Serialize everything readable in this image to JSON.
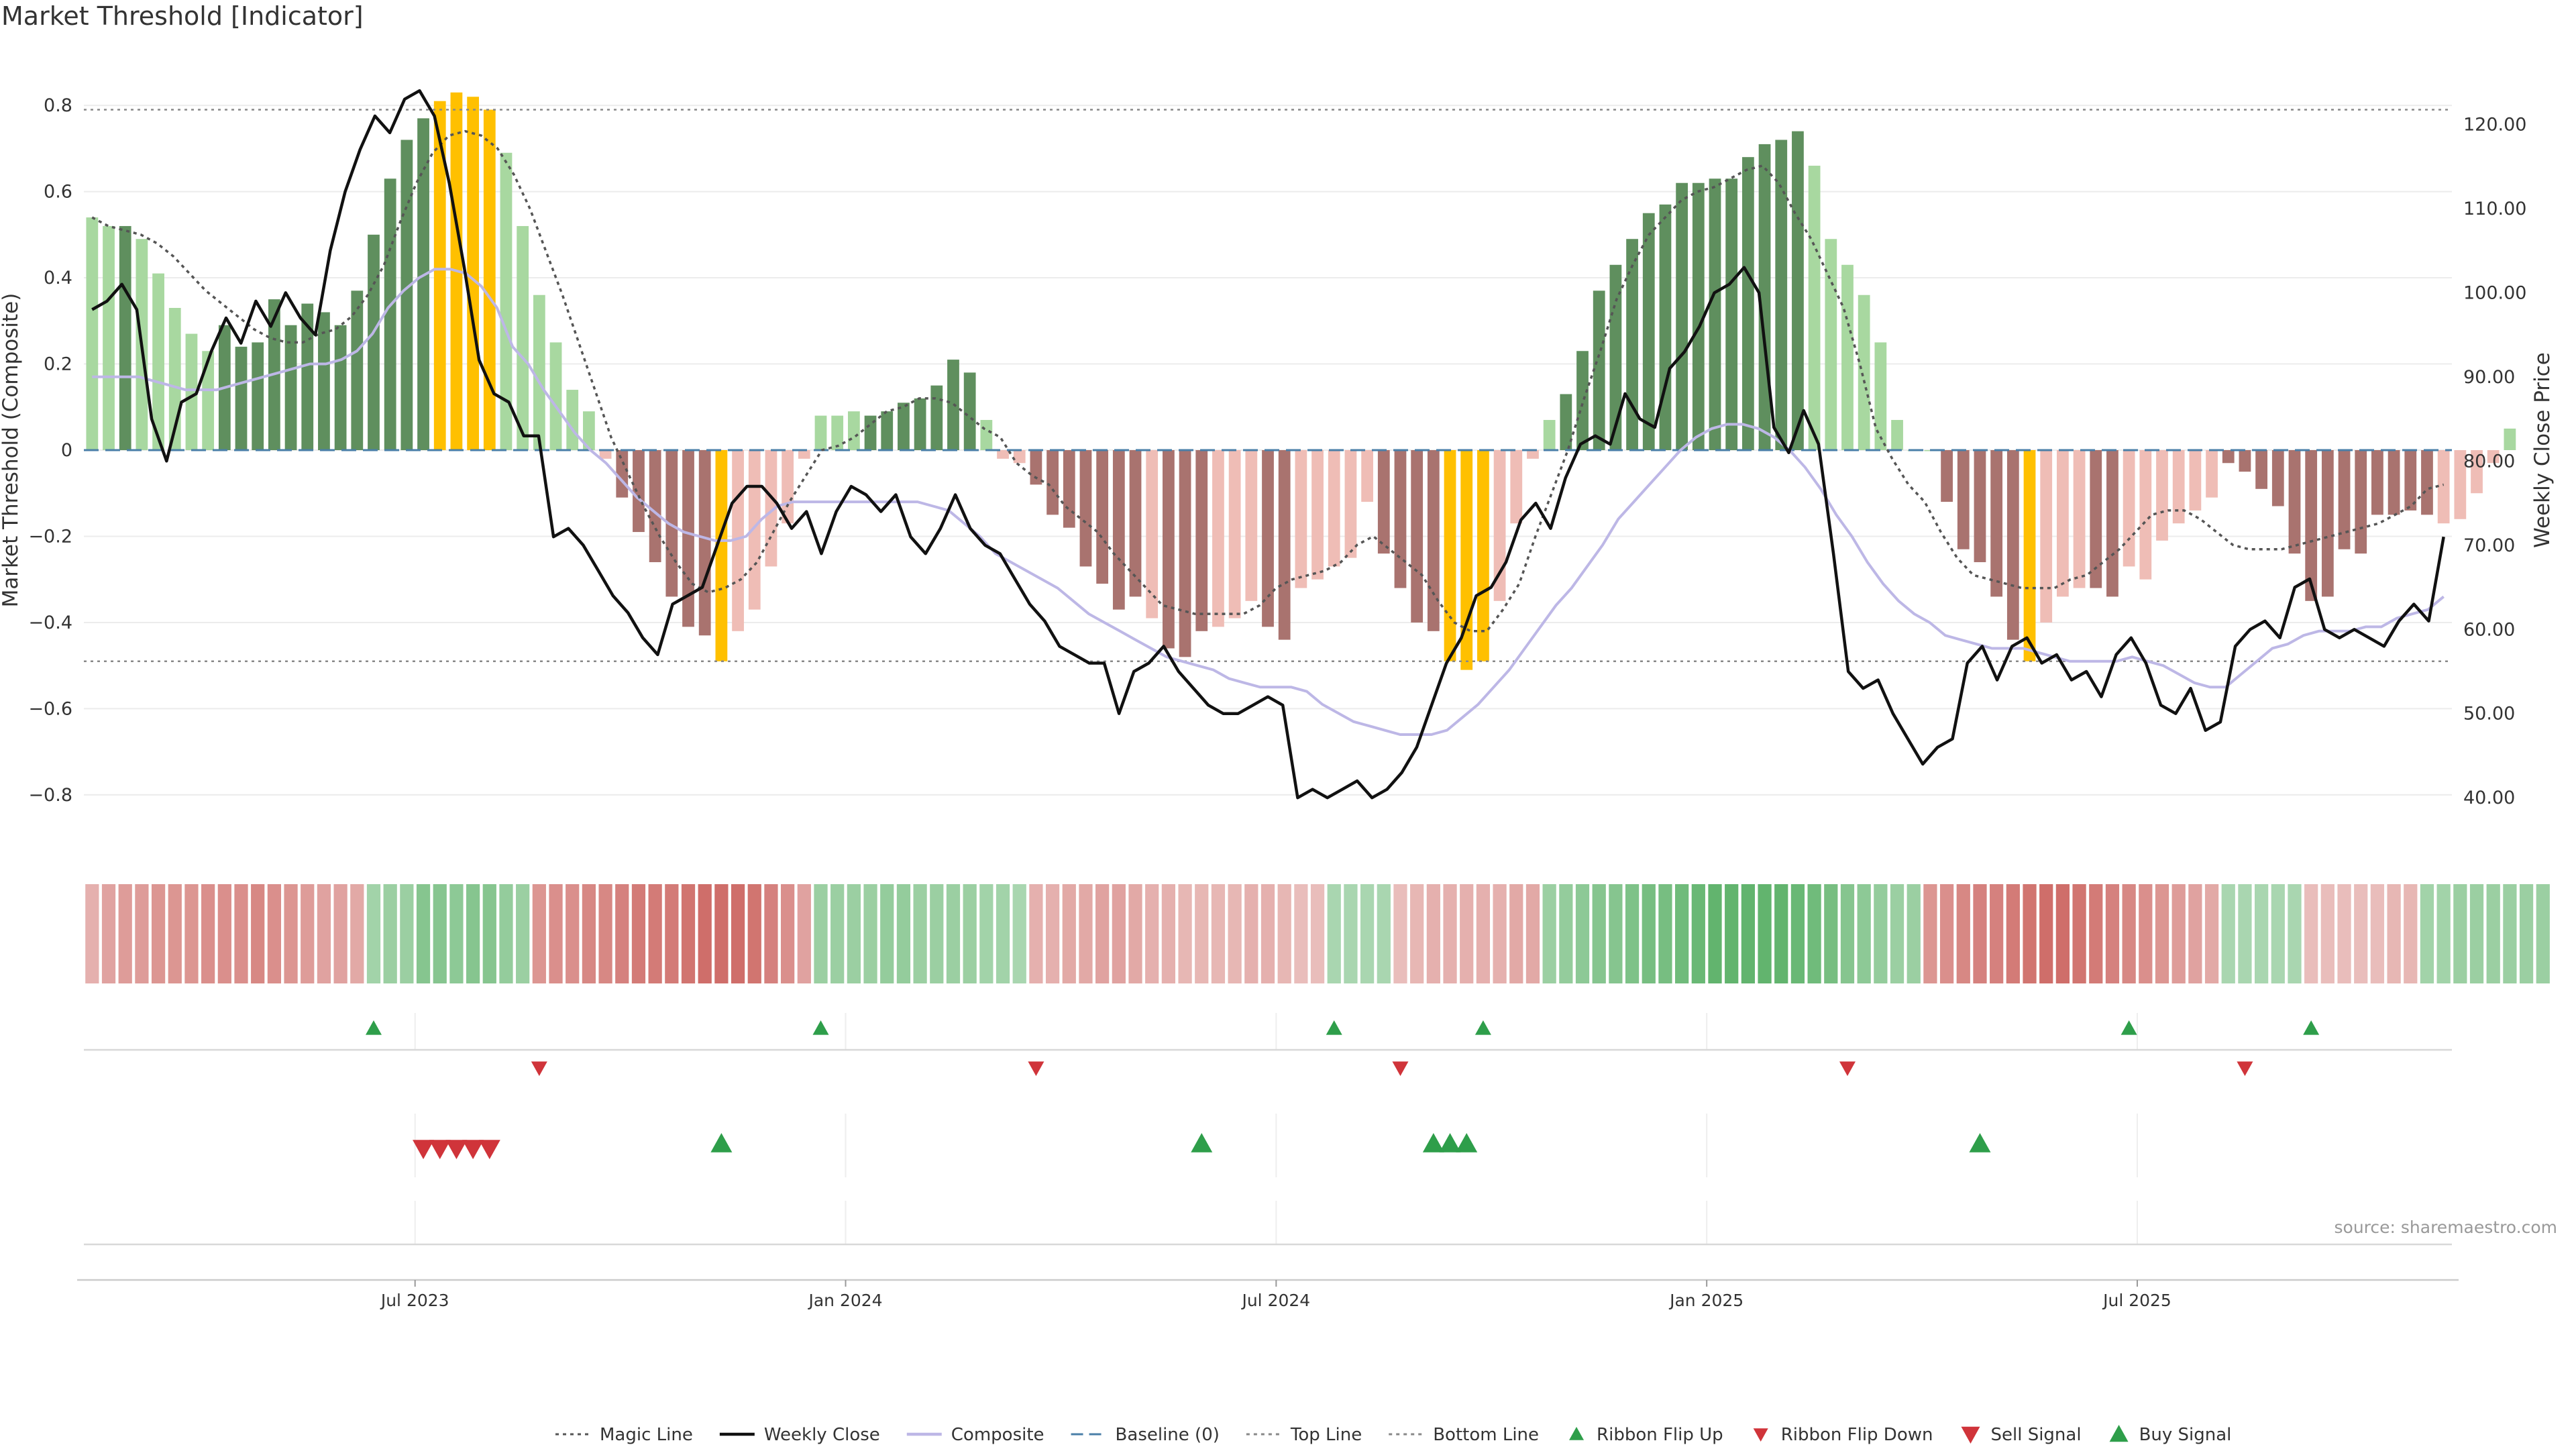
{
  "title": "Market Threshold [Indicator]",
  "source": "source: sharemaestro.com",
  "colors": {
    "dark_green": "#5f8f5e",
    "light_green": "#a8d8a0",
    "dark_red": "#a9736f",
    "light_red": "#efbdb6",
    "gold": "#ffc000",
    "close_line": "#111111",
    "composite_line": "#bdb7e6",
    "magic_line": "#555555",
    "baseline": "#4a7fa8",
    "threshold_line": "#888888",
    "up_marker": "#2e9e4a",
    "down_marker": "#d0343a"
  },
  "chart_data": {
    "type": "bar",
    "title": "Market Threshold [Indicator]",
    "ylabel": "Market Threshold (Composite)",
    "y2label": "Weekly Close Price",
    "ylim": [
      -0.92,
      0.92
    ],
    "y2lim": [
      34.2,
      128.4
    ],
    "yticks": [
      "0.8",
      "0.6",
      "0.4",
      "0.2",
      "0",
      "−0.2",
      "−0.4",
      "−0.6",
      "−0.8"
    ],
    "y2ticks": [
      "120.00",
      "110.00",
      "100.00",
      "90.00",
      "80.00",
      "70.00",
      "60.00",
      "50.00",
      "40.00"
    ],
    "xticks": [
      {
        "label": "Jul 2023",
        "week": 19.5
      },
      {
        "label": "Jan 2024",
        "week": 45.5
      },
      {
        "label": "Jul 2024",
        "week": 71.5
      },
      {
        "label": "Jan 2025",
        "week": 97.5
      },
      {
        "label": "Jul 2025",
        "week": 123.5
      }
    ],
    "top_line": 0.79,
    "bottom_line": -0.49,
    "baseline": 0,
    "weeks": 143,
    "bars": [
      0.54,
      0.52,
      0.52,
      0.49,
      0.41,
      0.33,
      0.27,
      0.23,
      0.29,
      0.24,
      0.25,
      0.35,
      0.29,
      0.34,
      0.32,
      0.29,
      0.37,
      0.5,
      0.63,
      0.72,
      0.77,
      0.81,
      0.83,
      0.82,
      0.79,
      0.69,
      0.52,
      0.36,
      0.25,
      0.14,
      0.09,
      -0.02,
      -0.11,
      -0.19,
      -0.26,
      -0.34,
      -0.41,
      -0.43,
      -0.49,
      -0.42,
      -0.37,
      -0.27,
      -0.17,
      -0.02,
      0.08,
      0.08,
      0.09,
      0.08,
      0.09,
      0.11,
      0.12,
      0.15,
      0.21,
      0.18,
      0.07,
      -0.02,
      -0.03,
      -0.08,
      -0.15,
      -0.18,
      -0.27,
      -0.31,
      -0.37,
      -0.34,
      -0.39,
      -0.46,
      -0.48,
      -0.42,
      -0.41,
      -0.39,
      -0.35,
      -0.41,
      -0.44,
      -0.32,
      -0.3,
      -0.27,
      -0.25,
      -0.12,
      -0.24,
      -0.32,
      -0.4,
      -0.42,
      -0.49,
      -0.51,
      -0.49,
      -0.35,
      -0.17,
      -0.02,
      0.07,
      0.13,
      0.23,
      0.37,
      0.43,
      0.49,
      0.55,
      0.57,
      0.62,
      0.62,
      0.63,
      0.63,
      0.68,
      0.71,
      0.72,
      0.74,
      0.66,
      0.49,
      0.43,
      0.36,
      0.25,
      0.07,
      0,
      0,
      -0.12,
      -0.23,
      -0.26,
      -0.34,
      -0.44,
      -0.49,
      -0.4,
      -0.34,
      -0.32,
      -0.32,
      -0.34,
      -0.27,
      -0.3,
      -0.21,
      -0.17,
      -0.14,
      -0.11,
      -0.03,
      -0.05,
      -0.09,
      -0.13,
      -0.24,
      -0.35,
      -0.34,
      -0.23,
      -0.24,
      -0.15,
      -0.15,
      -0.14,
      -0.15,
      -0.17,
      -0.16,
      -0.1,
      -0.03,
      0.05
    ],
    "bar_shade": [
      "l",
      "l",
      "d",
      "l",
      "l",
      "l",
      "l",
      "l",
      "d",
      "d",
      "d",
      "d",
      "d",
      "d",
      "d",
      "d",
      "d",
      "d",
      "d",
      "d",
      "d",
      "g",
      "g",
      "g",
      "g",
      "l",
      "l",
      "l",
      "l",
      "l",
      "l",
      "l",
      "d",
      "d",
      "d",
      "d",
      "d",
      "d",
      "g",
      "l",
      "l",
      "l",
      "l",
      "l",
      "l",
      "l",
      "l",
      "d",
      "d",
      "d",
      "d",
      "d",
      "d",
      "d",
      "l",
      "l",
      "l",
      "d",
      "d",
      "d",
      "d",
      "d",
      "d",
      "d",
      "l",
      "d",
      "d",
      "d",
      "l",
      "l",
      "l",
      "d",
      "d",
      "l",
      "l",
      "l",
      "l",
      "l",
      "d",
      "d",
      "d",
      "d",
      "g",
      "g",
      "g",
      "l",
      "l",
      "l",
      "l",
      "d",
      "d",
      "d",
      "d",
      "d",
      "d",
      "d",
      "d",
      "d",
      "d",
      "d",
      "d",
      "d",
      "d",
      "d",
      "l",
      "l",
      "l",
      "l",
      "l",
      "l",
      "l",
      "l",
      "d",
      "d",
      "d",
      "d",
      "d",
      "g",
      "l",
      "l",
      "l",
      "d",
      "d",
      "l",
      "l",
      "l",
      "l",
      "l",
      "l",
      "d",
      "d",
      "d",
      "d",
      "d",
      "d",
      "d",
      "d",
      "d",
      "d",
      "d",
      "d",
      "d",
      "l",
      "l",
      "l"
    ],
    "series": [
      {
        "name": "Weekly Close",
        "axis": "right",
        "values": [
          98,
          99,
          101,
          98,
          85,
          80,
          87,
          88,
          93,
          97,
          94,
          99,
          96,
          100,
          97,
          95,
          105,
          112,
          117,
          121,
          119,
          123,
          124,
          121,
          113,
          103,
          92,
          88,
          87,
          83,
          83,
          71,
          72,
          70,
          67,
          64,
          62,
          59,
          57,
          63,
          64,
          65,
          70,
          75,
          77,
          77,
          75,
          72,
          74,
          69,
          74,
          77,
          76,
          74,
          76,
          71,
          69,
          72,
          76,
          72,
          70,
          69,
          66,
          63,
          61,
          58,
          57,
          56,
          56,
          50,
          55,
          56,
          58,
          55,
          53,
          51,
          50,
          50,
          51,
          52,
          51,
          40,
          41,
          40,
          41,
          42,
          40,
          41,
          43,
          46,
          51,
          56,
          59,
          64,
          65,
          68,
          73,
          75,
          72,
          78,
          82,
          83,
          82,
          88,
          85,
          84,
          91,
          93,
          96,
          100,
          101,
          103,
          100,
          84,
          81,
          86,
          82,
          69,
          55,
          53,
          54,
          50,
          47,
          44,
          46,
          47,
          56,
          58,
          54,
          58,
          59,
          56,
          57,
          54,
          55,
          52,
          57,
          59,
          56,
          51,
          50,
          53,
          48,
          49,
          58,
          60,
          61,
          59,
          65,
          66,
          60,
          59,
          60,
          59,
          58,
          61,
          63,
          61,
          71
        ]
      },
      {
        "name": "Composite",
        "axis": "left",
        "values": [
          0.17,
          0.17,
          0.17,
          0.17,
          0.16,
          0.15,
          0.14,
          0.14,
          0.14,
          0.15,
          0.16,
          0.17,
          0.18,
          0.19,
          0.2,
          0.2,
          0.21,
          0.23,
          0.27,
          0.33,
          0.37,
          0.4,
          0.42,
          0.42,
          0.41,
          0.38,
          0.33,
          0.24,
          0.2,
          0.14,
          0.09,
          0.04,
          0,
          -0.03,
          -0.07,
          -0.11,
          -0.14,
          -0.17,
          -0.19,
          -0.2,
          -0.21,
          -0.21,
          -0.2,
          -0.16,
          -0.13,
          -0.12,
          -0.12,
          -0.12,
          -0.12,
          -0.12,
          -0.12,
          -0.12,
          -0.12,
          -0.12,
          -0.13,
          -0.14,
          -0.17,
          -0.2,
          -0.24,
          -0.26,
          -0.28,
          -0.3,
          -0.32,
          -0.35,
          -0.38,
          -0.4,
          -0.42,
          -0.44,
          -0.46,
          -0.48,
          -0.49,
          -0.5,
          -0.51,
          -0.53,
          -0.54,
          -0.55,
          -0.55,
          -0.55,
          -0.56,
          -0.59,
          -0.61,
          -0.63,
          -0.64,
          -0.65,
          -0.66,
          -0.66,
          -0.66,
          -0.65,
          -0.62,
          -0.59,
          -0.55,
          -0.51,
          -0.46,
          -0.41,
          -0.36,
          -0.32,
          -0.27,
          -0.22,
          -0.16,
          -0.12,
          -0.08,
          -0.04,
          0,
          0.03,
          0.05,
          0.06,
          0.06,
          0.05,
          0.03,
          0,
          -0.04,
          -0.09,
          -0.15,
          -0.2,
          -0.26,
          -0.31,
          -0.35,
          -0.38,
          -0.4,
          -0.43,
          -0.44,
          -0.45,
          -0.46,
          -0.46,
          -0.46,
          -0.47,
          -0.48,
          -0.49,
          -0.49,
          -0.49,
          -0.49,
          -0.48,
          -0.49,
          -0.5,
          -0.52,
          -0.54,
          -0.55,
          -0.55,
          -0.52,
          -0.49,
          -0.46,
          -0.45,
          -0.43,
          -0.42,
          -0.42,
          -0.42,
          -0.41,
          -0.41,
          -0.39,
          -0.38,
          -0.37,
          -0.34
        ]
      },
      {
        "name": "Magic Line",
        "axis": "left",
        "values": [
          0.54,
          0.52,
          0.51,
          0.5,
          0.48,
          0.45,
          0.41,
          0.37,
          0.34,
          0.31,
          0.28,
          0.26,
          0.25,
          0.25,
          0.27,
          0.28,
          0.31,
          0.36,
          0.43,
          0.53,
          0.62,
          0.69,
          0.73,
          0.74,
          0.73,
          0.7,
          0.64,
          0.56,
          0.46,
          0.36,
          0.25,
          0.14,
          0.03,
          -0.05,
          -0.13,
          -0.2,
          -0.26,
          -0.31,
          -0.33,
          -0.32,
          -0.3,
          -0.26,
          -0.19,
          -0.12,
          -0.06,
          0,
          0.01,
          0.03,
          0.06,
          0.09,
          0.1,
          0.12,
          0.12,
          0.11,
          0.08,
          0.05,
          0.03,
          -0.03,
          -0.06,
          -0.08,
          -0.13,
          -0.16,
          -0.19,
          -0.24,
          -0.28,
          -0.32,
          -0.36,
          -0.37,
          -0.38,
          -0.38,
          -0.38,
          -0.38,
          -0.36,
          -0.32,
          -0.3,
          -0.29,
          -0.28,
          -0.26,
          -0.22,
          -0.2,
          -0.23,
          -0.26,
          -0.29,
          -0.35,
          -0.4,
          -0.42,
          -0.42,
          -0.37,
          -0.31,
          -0.2,
          -0.1,
          0,
          0.12,
          0.23,
          0.35,
          0.43,
          0.5,
          0.54,
          0.58,
          0.6,
          0.61,
          0.63,
          0.65,
          0.66,
          0.62,
          0.55,
          0.49,
          0.41,
          0.33,
          0.2,
          0.05,
          -0.02,
          -0.08,
          -0.12,
          -0.19,
          -0.25,
          -0.29,
          -0.3,
          -0.31,
          -0.32,
          -0.32,
          -0.32,
          -0.3,
          -0.29,
          -0.26,
          -0.23,
          -0.19,
          -0.15,
          -0.14,
          -0.14,
          -0.16,
          -0.19,
          -0.22,
          -0.23,
          -0.23,
          -0.23,
          -0.22,
          -0.21,
          -0.2,
          -0.19,
          -0.18,
          -0.17,
          -0.15,
          -0.13,
          -0.09,
          -0.08
        ]
      },
      {
        "name": "Ribbon Flip Up",
        "weeks": [
          17,
          44,
          75,
          84,
          123,
          134
        ]
      },
      {
        "name": "Ribbon Flip Down",
        "weeks": [
          27,
          57,
          79,
          106,
          130
        ]
      },
      {
        "name": "Sell Signal",
        "weeks": [
          20,
          21,
          22,
          23,
          24
        ]
      },
      {
        "name": "Buy Signal",
        "weeks": [
          38,
          67,
          81,
          82,
          83,
          114
        ]
      }
    ],
    "ribbon": [
      -0.35,
      -0.45,
      -0.5,
      -0.5,
      -0.55,
      -0.55,
      -0.55,
      -0.6,
      -0.6,
      -0.6,
      -0.65,
      -0.6,
      -0.55,
      -0.5,
      -0.45,
      -0.45,
      -0.4,
      0.4,
      0.45,
      0.45,
      0.6,
      0.6,
      0.55,
      0.6,
      0.6,
      0.5,
      0.45,
      -0.55,
      -0.6,
      -0.6,
      -0.65,
      -0.65,
      -0.7,
      -0.75,
      -0.75,
      -0.75,
      -0.8,
      -0.85,
      -0.85,
      -0.85,
      -0.8,
      -0.7,
      -0.6,
      -0.45,
      0.45,
      0.45,
      0.45,
      0.45,
      0.5,
      0.5,
      0.45,
      0.45,
      0.45,
      0.45,
      0.4,
      0.4,
      0.35,
      -0.35,
      -0.35,
      -0.4,
      -0.4,
      -0.45,
      -0.45,
      -0.4,
      -0.35,
      -0.35,
      -0.3,
      -0.3,
      -0.3,
      -0.3,
      -0.35,
      -0.35,
      -0.3,
      -0.25,
      -0.25,
      0.35,
      0.35,
      0.35,
      0.35,
      -0.25,
      -0.3,
      -0.35,
      -0.35,
      -0.35,
      -0.35,
      -0.35,
      -0.4,
      -0.4,
      0.45,
      0.5,
      0.55,
      0.6,
      0.6,
      0.65,
      0.7,
      0.7,
      0.75,
      0.8,
      0.85,
      0.85,
      0.85,
      0.85,
      0.85,
      0.8,
      0.75,
      0.7,
      0.6,
      0.55,
      0.5,
      0.45,
      0.45,
      -0.55,
      -0.6,
      -0.65,
      -0.7,
      -0.7,
      -0.75,
      -0.8,
      -0.85,
      -0.85,
      -0.8,
      -0.75,
      -0.7,
      -0.65,
      -0.6,
      -0.55,
      -0.5,
      -0.45,
      -0.4,
      0.35,
      0.35,
      0.35,
      0.35,
      0.35,
      -0.25,
      -0.25,
      -0.25,
      -0.25,
      -0.25,
      -0.3,
      -0.3,
      0.4,
      0.4,
      0.45,
      0.45,
      0.45,
      0.45,
      0.45,
      0.45
    ],
    "legend": [
      {
        "label": "Magic Line",
        "kind": "dotted",
        "color": "#555555"
      },
      {
        "label": "Weekly Close",
        "kind": "solid",
        "color": "#111111"
      },
      {
        "label": "Composite",
        "kind": "solid",
        "color": "#bdb7e6"
      },
      {
        "label": "Baseline (0)",
        "kind": "dashed",
        "color": "#4a7fa8"
      },
      {
        "label": "Top Line",
        "kind": "dotted",
        "color": "#888888"
      },
      {
        "label": "Bottom Line",
        "kind": "dotted",
        "color": "#888888"
      },
      {
        "label": "Ribbon Flip Up",
        "kind": "tri-up",
        "color": "#2e9e4a"
      },
      {
        "label": "Ribbon Flip Down",
        "kind": "tri-down",
        "color": "#d0343a"
      },
      {
        "label": "Sell Signal",
        "kind": "tri-down-lg",
        "color": "#d0343a"
      },
      {
        "label": "Buy Signal",
        "kind": "tri-up-lg",
        "color": "#2e9e4a"
      }
    ],
    "legend_position": "bottom-center"
  }
}
